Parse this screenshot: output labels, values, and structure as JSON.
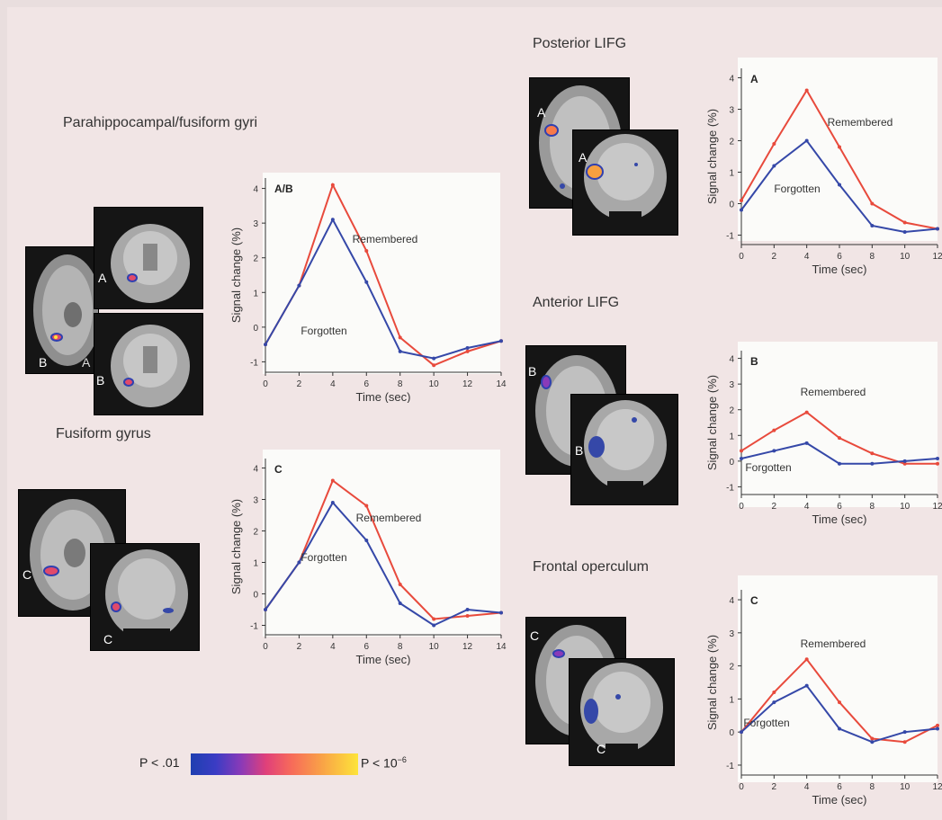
{
  "titles": {
    "para": "Parahippocampal/fusiform gyri",
    "fusiform": "Fusiform gyrus",
    "post": "Posterior LIFG",
    "ant": "Anterior LIFG",
    "frontal": "Frontal operculum"
  },
  "mri_labels": {
    "A": "A",
    "B": "B",
    "C": "C"
  },
  "scale": {
    "low": "P < .01",
    "high": "P < 10",
    "high_exp": "−6"
  },
  "colors": {
    "remembered": "#e84a3c",
    "forgotten": "#3548a8"
  },
  "chart_data": [
    {
      "type": "line",
      "panel": "A/B",
      "x": [
        0,
        2,
        4,
        6,
        8,
        10,
        12,
        14
      ],
      "series": [
        {
          "name": "Remembered",
          "values": [
            -0.5,
            1.2,
            4.1,
            2.2,
            -0.3,
            -1.1,
            -0.7,
            -0.4
          ]
        },
        {
          "name": "Forgotten",
          "values": [
            -0.5,
            1.2,
            3.1,
            1.3,
            -0.7,
            -0.9,
            -0.6,
            -0.4
          ]
        }
      ],
      "xlabel": "Time (sec)",
      "ylabel": "Signal change (%)",
      "xlim": [
        0,
        14
      ],
      "ylim": [
        -1.3,
        4.3
      ],
      "xticks": [
        "0",
        "2",
        "4",
        "6",
        "8",
        "10",
        "12",
        "14"
      ],
      "yticks": [
        "-1",
        "0",
        "1",
        "2",
        "3",
        "4"
      ]
    },
    {
      "type": "line",
      "panel": "C",
      "x": [
        0,
        2,
        4,
        6,
        8,
        10,
        12,
        14
      ],
      "series": [
        {
          "name": "Remembered",
          "values": [
            -0.5,
            1.0,
            3.6,
            2.8,
            0.3,
            -0.8,
            -0.7,
            -0.6
          ]
        },
        {
          "name": "Forgotten",
          "values": [
            -0.5,
            1.0,
            2.9,
            1.7,
            -0.3,
            -1.0,
            -0.5,
            -0.6
          ]
        }
      ],
      "xlabel": "Time (sec)",
      "ylabel": "Signal change (%)",
      "xlim": [
        0,
        14
      ],
      "ylim": [
        -1.3,
        4.3
      ],
      "xticks": [
        "0",
        "2",
        "4",
        "6",
        "8",
        "10",
        "12",
        "14"
      ],
      "yticks": [
        "-1",
        "0",
        "1",
        "2",
        "3",
        "4"
      ]
    },
    {
      "type": "line",
      "panel": "A",
      "x": [
        0,
        2,
        4,
        6,
        8,
        10,
        12
      ],
      "series": [
        {
          "name": "Remembered",
          "values": [
            0.1,
            1.9,
            3.6,
            1.8,
            0.0,
            -0.6,
            -0.8
          ]
        },
        {
          "name": "Forgotten",
          "values": [
            -0.2,
            1.2,
            2.0,
            0.6,
            -0.7,
            -0.9,
            -0.8
          ]
        }
      ],
      "xlabel": "Time (sec)",
      "ylabel": "Signal change (%)",
      "xlim": [
        0,
        12
      ],
      "ylim": [
        -1.3,
        4.3
      ],
      "xticks": [
        "0",
        "2",
        "4",
        "6",
        "8",
        "10",
        "12"
      ],
      "yticks": [
        "-1",
        "0",
        "1",
        "2",
        "3",
        "4"
      ]
    },
    {
      "type": "line",
      "panel": "B",
      "x": [
        0,
        2,
        4,
        6,
        8,
        10,
        12
      ],
      "series": [
        {
          "name": "Remembered",
          "values": [
            0.4,
            1.2,
            1.9,
            0.9,
            0.3,
            -0.1,
            -0.1
          ]
        },
        {
          "name": "Forgotten",
          "values": [
            0.1,
            0.4,
            0.7,
            -0.1,
            -0.1,
            0.0,
            0.1
          ]
        }
      ],
      "xlabel": "Time (sec)",
      "ylabel": "Signal change (%)",
      "xlim": [
        0,
        12
      ],
      "ylim": [
        -1.3,
        4.3
      ],
      "xticks": [
        "0",
        "2",
        "4",
        "6",
        "8",
        "10",
        "12"
      ],
      "yticks": [
        "-1",
        "0",
        "1",
        "2",
        "3",
        "4"
      ]
    },
    {
      "type": "line",
      "panel": "C",
      "x": [
        0,
        2,
        4,
        6,
        8,
        10,
        12
      ],
      "series": [
        {
          "name": "Remembered",
          "values": [
            0.0,
            1.2,
            2.2,
            0.9,
            -0.2,
            -0.3,
            0.2
          ]
        },
        {
          "name": "Forgotten",
          "values": [
            0.0,
            0.9,
            1.4,
            0.1,
            -0.3,
            0.0,
            0.1
          ]
        }
      ],
      "xlabel": "Time (sec)",
      "ylabel": "Signal change (%)",
      "xlim": [
        0,
        12
      ],
      "ylim": [
        -1.3,
        4.3
      ],
      "xticks": [
        "0",
        "2",
        "4",
        "6",
        "8",
        "10",
        "12"
      ],
      "yticks": [
        "-1",
        "0",
        "1",
        "2",
        "3",
        "4"
      ]
    }
  ]
}
